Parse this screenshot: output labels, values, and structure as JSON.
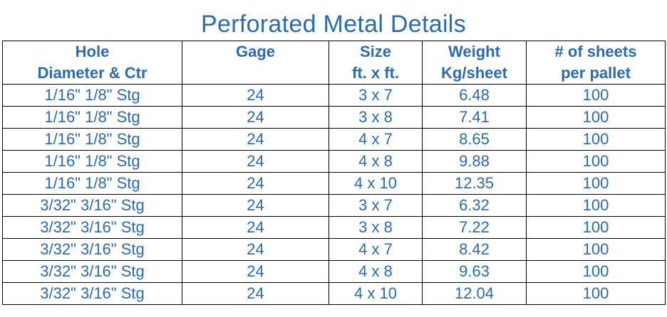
{
  "title": "Perforated Metal Details",
  "headers": {
    "row1": [
      "Hole",
      "Gage",
      "Size",
      "Weight",
      "# of sheets"
    ],
    "row2": [
      "Diameter & Ctr",
      "",
      "ft. x ft.",
      "Kg/sheet",
      "per pallet"
    ]
  },
  "rows": [
    [
      "1/16\" 1/8\" Stg",
      "24",
      "3 x 7",
      "6.48",
      "100"
    ],
    [
      "1/16\" 1/8\" Stg",
      "24",
      "3 x 8",
      "7.41",
      "100"
    ],
    [
      "1/16\" 1/8\" Stg",
      "24",
      "4 x 7",
      "8.65",
      "100"
    ],
    [
      "1/16\" 1/8\" Stg",
      "24",
      "4 x 8",
      "9.88",
      "100"
    ],
    [
      "1/16\" 1/8\" Stg",
      "24",
      "4 x 10",
      "12.35",
      "100"
    ],
    [
      "3/32\" 3/16\" Stg",
      "24",
      "3 x 7",
      "6.32",
      "100"
    ],
    [
      "3/32\" 3/16\" Stg",
      "24",
      "3 x 8",
      "7.22",
      "100"
    ],
    [
      "3/32\" 3/16\" Stg",
      "24",
      "4 x 7",
      "8.42",
      "100"
    ],
    [
      "3/32\" 3/16\" Stg",
      "24",
      "4 x 8",
      "9.63",
      "100"
    ],
    [
      "3/32\" 3/16\" Stg",
      "24",
      "4 x 10",
      "12.04",
      "100"
    ]
  ]
}
